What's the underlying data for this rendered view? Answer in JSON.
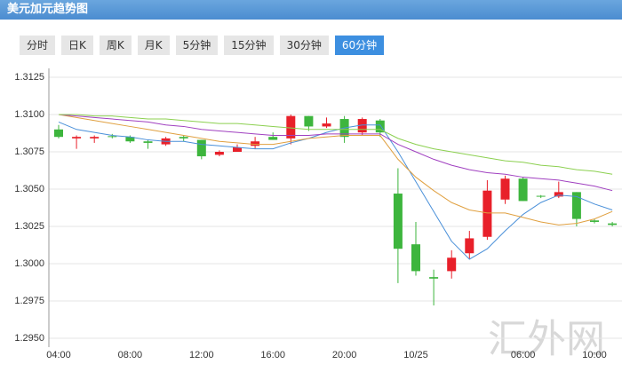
{
  "header": {
    "title": "美元加元趋势图"
  },
  "tabs": [
    "分时",
    "日K",
    "周K",
    "月K",
    "5分钟",
    "15分钟",
    "30分钟",
    "60分钟"
  ],
  "active_tab": 7,
  "watermark": "汇外网",
  "chart_data": {
    "type": "candlestick",
    "categories": [
      "04:00",
      null,
      null,
      null,
      "08:00",
      null,
      null,
      null,
      "12:00",
      null,
      null,
      null,
      "16:00",
      null,
      null,
      null,
      "20:00",
      null,
      null,
      null,
      "10/25",
      null,
      null,
      null,
      null,
      null,
      "06:00",
      null,
      null,
      null,
      "10:00",
      null
    ],
    "open": [
      1.309,
      1.3084,
      1.3084,
      1.30855,
      1.3085,
      1.3082,
      1.308,
      1.3085,
      1.3083,
      1.3073,
      1.3075,
      1.3079,
      1.3085,
      1.3084,
      1.3099,
      1.3092,
      1.3097,
      1.3088,
      1.3096,
      1.3047,
      1.3013,
      1.2991,
      1.2995,
      1.3007,
      1.3018,
      1.3043,
      1.3057,
      1.30455,
      1.3045,
      1.3048,
      1.3029,
      1.3027
    ],
    "high": [
      1.3093,
      1.3086,
      1.3086,
      1.3087,
      1.3086,
      1.3083,
      1.3085,
      1.3086,
      1.3083,
      1.3076,
      1.308,
      1.3085,
      1.3088,
      1.31,
      1.3099,
      1.3098,
      1.3099,
      1.3098,
      1.3097,
      1.3064,
      1.3028,
      1.2996,
      1.3009,
      1.3022,
      1.3056,
      1.3059,
      1.3058,
      1.3046,
      1.3055,
      1.3048,
      1.303,
      1.3028
    ],
    "low": [
      1.3084,
      1.3077,
      1.3081,
      1.3084,
      1.3081,
      1.3077,
      1.3079,
      1.3082,
      1.307,
      1.3072,
      1.3075,
      1.3077,
      1.3083,
      1.308,
      1.3089,
      1.3091,
      1.3081,
      1.3086,
      1.3085,
      1.2987,
      1.2992,
      1.2972,
      1.299,
      1.3003,
      1.3016,
      1.304,
      1.3042,
      1.3044,
      1.3044,
      1.3025,
      1.3027,
      1.3025
    ],
    "close": [
      1.3085,
      1.3085,
      1.3085,
      1.3085,
      1.3082,
      1.3081,
      1.3084,
      1.3084,
      1.3072,
      1.3075,
      1.3078,
      1.3082,
      1.3083,
      1.3099,
      1.3092,
      1.3094,
      1.3085,
      1.3097,
      1.3088,
      1.301,
      1.2995,
      1.299,
      1.3004,
      1.3017,
      1.3049,
      1.3057,
      1.3042,
      1.3045,
      1.3048,
      1.303,
      1.3028,
      1.3026
    ],
    "up_color": "#e8202a",
    "down_color": "#3db53d",
    "series": [
      {
        "color": "#4a90d9",
        "values": [
          1.3095,
          1.309,
          1.3088,
          1.3086,
          1.3085,
          1.3083,
          1.3082,
          1.3082,
          1.308,
          1.3079,
          1.3078,
          1.3077,
          1.3077,
          1.3081,
          1.3084,
          1.3088,
          1.3091,
          1.3093,
          1.3093,
          1.3075,
          1.3055,
          1.3035,
          1.3015,
          1.3003,
          1.301,
          1.3022,
          1.3033,
          1.3041,
          1.3046,
          1.3045,
          1.304,
          1.3036
        ]
      },
      {
        "color": "#e0a040",
        "values": [
          1.31,
          1.3098,
          1.3096,
          1.3094,
          1.3092,
          1.309,
          1.3088,
          1.3086,
          1.3084,
          1.3082,
          1.3081,
          1.308,
          1.308,
          1.3082,
          1.3084,
          1.3085,
          1.3086,
          1.3086,
          1.3086,
          1.307,
          1.3058,
          1.3049,
          1.3041,
          1.3036,
          1.3034,
          1.3034,
          1.3031,
          1.3028,
          1.3026,
          1.3027,
          1.303,
          1.3035
        ]
      },
      {
        "color": "#a040c0",
        "values": [
          1.31,
          1.3099,
          1.3098,
          1.3097,
          1.3096,
          1.3095,
          1.3093,
          1.3092,
          1.309,
          1.3089,
          1.3088,
          1.3087,
          1.3086,
          1.3086,
          1.3086,
          1.3087,
          1.3087,
          1.3087,
          1.3087,
          1.308,
          1.3075,
          1.307,
          1.3066,
          1.3063,
          1.3061,
          1.306,
          1.3058,
          1.3057,
          1.3056,
          1.3054,
          1.3052,
          1.3049
        ]
      },
      {
        "color": "#8cd050",
        "values": [
          1.31,
          1.31,
          1.3099,
          1.3099,
          1.3098,
          1.3097,
          1.3097,
          1.3096,
          1.3095,
          1.3094,
          1.3094,
          1.3093,
          1.3092,
          1.3091,
          1.309,
          1.309,
          1.309,
          1.309,
          1.309,
          1.3084,
          1.308,
          1.3077,
          1.3075,
          1.3073,
          1.3071,
          1.3069,
          1.3068,
          1.3066,
          1.3065,
          1.3063,
          1.3062,
          1.306
        ]
      }
    ],
    "ylim": [
      1.295,
      1.3125
    ],
    "yticks": [
      1.3125,
      {
        "value": 1.31,
        "label": "1.3100"
      },
      1.3075,
      {
        "value": 1.305,
        "label": "1.3050"
      },
      1.3025,
      {
        "value": 1.3,
        "label": "1.3000"
      },
      1.2975,
      {
        "value": 1.295,
        "label": "1.2950"
      }
    ],
    "grid": true
  }
}
